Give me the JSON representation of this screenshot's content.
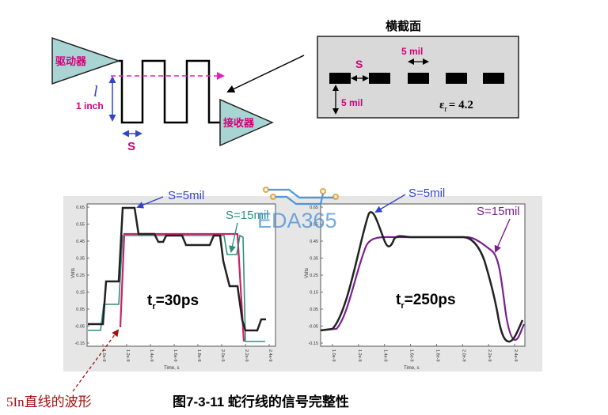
{
  "top_left": {
    "driver_label": "驱动器",
    "receiver_label": "接收器",
    "length_symbol": "l",
    "length_value": "1 inch",
    "spacing_label": "S"
  },
  "cross_section": {
    "title": "横截面",
    "spacing_label": "S",
    "width_label": "5 mil",
    "height_label": "5 mil",
    "er_symbol": "ε",
    "er_sub": "r",
    "er_value": "= 4.2"
  },
  "charts": {
    "watermark": "EDA365",
    "left": {
      "s5_label": "S=5mil",
      "s15_label": "S=15mil",
      "tr_t": "t",
      "tr_sub": "r",
      "tr_value": "=30ps",
      "yticks": [
        "0.65",
        "0.55",
        "0.45",
        "0.35",
        "0.25",
        "0.15",
        "0.05",
        "-0.05",
        "-0.15"
      ],
      "xticks": [
        "1.0e-9",
        "1.2e-9",
        "1.4e-9",
        "1.6e-9",
        "1.8e-9",
        "2.0e-9",
        "2.2e-9",
        "2.4e-9"
      ],
      "xlabel": "Time, s",
      "ylabel": "Volts"
    },
    "right": {
      "s5_label": "S=5mil",
      "s15_label": "S=15mil",
      "tr_t": "t",
      "tr_sub": "r",
      "tr_value": "=250ps",
      "yticks": [
        "0.65",
        "0.55",
        "0.45",
        "0.35",
        "0.25",
        "0.15",
        "0.05",
        "-0.05",
        "-0.15"
      ],
      "xticks": [
        "1.0e-9",
        "1.2e-9",
        "1.4e-9",
        "1.6e-9",
        "1.8e-9",
        "2.0e-9",
        "2.2e-9",
        "2.4e-9"
      ],
      "xlabel": "Time, s",
      "ylabel": "Volts"
    }
  },
  "bottom": {
    "straight_label": "5In直线的波形",
    "caption": "图7-3-11 蛇行线的信号完整性"
  },
  "colors": {
    "triangle_fill": "#a8d4d4",
    "magenta": "#d4007a",
    "blue": "#3344cc",
    "purple": "#7a1f8f",
    "teal": "#2f8f7f",
    "pink_line": "#cc2266",
    "dark_red": "#a01010"
  }
}
